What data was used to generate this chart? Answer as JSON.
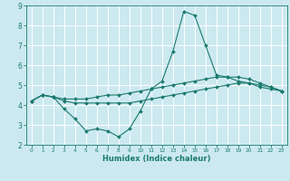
{
  "title": "",
  "xlabel": "Humidex (Indice chaleur)",
  "ylabel": "",
  "bg_color": "#cce9f0",
  "grid_color": "#ffffff",
  "line_color": "#1a7a6e",
  "xlim": [
    -0.5,
    23.5
  ],
  "ylim": [
    2,
    9
  ],
  "xticks": [
    0,
    1,
    2,
    3,
    4,
    5,
    6,
    7,
    8,
    9,
    10,
    11,
    12,
    13,
    14,
    15,
    16,
    17,
    18,
    19,
    20,
    21,
    22,
    23
  ],
  "yticks": [
    2,
    3,
    4,
    5,
    6,
    7,
    8,
    9
  ],
  "line1_x": [
    0,
    1,
    2,
    3,
    4,
    5,
    6,
    7,
    8,
    9,
    10,
    11,
    12,
    13,
    14,
    15,
    16,
    17,
    18,
    19,
    20,
    21,
    22,
    23
  ],
  "line1_y": [
    4.2,
    4.5,
    4.4,
    3.8,
    3.3,
    2.7,
    2.8,
    2.7,
    2.4,
    2.8,
    3.7,
    4.8,
    5.2,
    6.7,
    8.7,
    8.5,
    7.0,
    5.5,
    5.4,
    5.2,
    5.1,
    4.9,
    4.8,
    4.7
  ],
  "line2_x": [
    0,
    1,
    2,
    3,
    4,
    5,
    6,
    7,
    8,
    9,
    10,
    11,
    12,
    13,
    14,
    15,
    16,
    17,
    18,
    19,
    20,
    21,
    22,
    23
  ],
  "line2_y": [
    4.2,
    4.5,
    4.4,
    4.3,
    4.3,
    4.3,
    4.4,
    4.5,
    4.5,
    4.6,
    4.7,
    4.8,
    4.9,
    5.0,
    5.1,
    5.2,
    5.3,
    5.4,
    5.4,
    5.4,
    5.3,
    5.1,
    4.9,
    4.7
  ],
  "line3_x": [
    0,
    1,
    2,
    3,
    4,
    5,
    6,
    7,
    8,
    9,
    10,
    11,
    12,
    13,
    14,
    15,
    16,
    17,
    18,
    19,
    20,
    21,
    22,
    23
  ],
  "line3_y": [
    4.2,
    4.5,
    4.4,
    4.2,
    4.1,
    4.1,
    4.1,
    4.1,
    4.1,
    4.1,
    4.2,
    4.3,
    4.4,
    4.5,
    4.6,
    4.7,
    4.8,
    4.9,
    5.0,
    5.1,
    5.1,
    5.0,
    4.9,
    4.7
  ],
  "xlabel_fontsize": 6.0,
  "tick_fontsize_x": 4.2,
  "tick_fontsize_y": 5.5,
  "marker_size": 2.0,
  "line_width": 0.8
}
